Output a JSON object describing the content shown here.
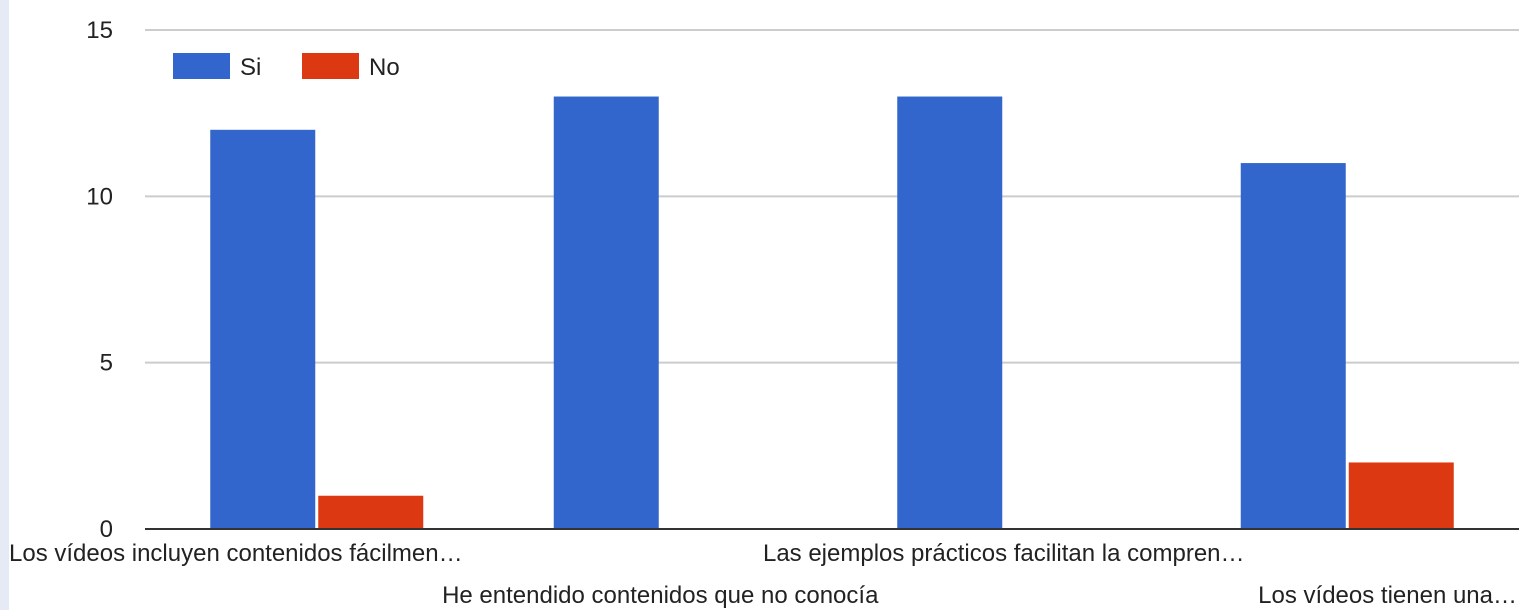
{
  "chart_data": {
    "type": "bar",
    "categories": [
      "Los vídeos incluyen contenidos fácilmen…",
      "He entendido contenidos que no conocía",
      "Las ejemplos prácticos facilitan la compren…",
      "Los vídeos tienen una…"
    ],
    "series": [
      {
        "name": "Si",
        "values": [
          12,
          13,
          13,
          11
        ],
        "color": "#3366cc"
      },
      {
        "name": "No",
        "values": [
          1,
          0,
          0,
          2
        ],
        "color": "#dc3912"
      }
    ],
    "yticks": [
      "0",
      "5",
      "10",
      "15"
    ],
    "ylim": [
      0,
      15
    ],
    "grid": true,
    "legend_position": "top-left"
  }
}
